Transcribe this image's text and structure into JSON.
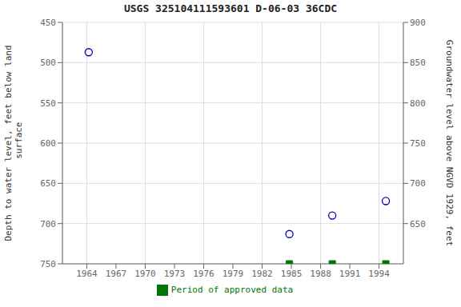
{
  "chart_data": {
    "type": "scatter",
    "title": "USGS 325104111593601 D-06-03 36CDC",
    "ylabel": "Depth to water level, feet below land\n surface",
    "y2label": "Groundwater level above NGVD 1929, feet",
    "series": [
      {
        "color": "#0000bb",
        "marker": "circle",
        "x": [
          1964.2,
          1984.8,
          1989.2,
          1994.7
        ],
        "values": [
          487,
          713,
          690,
          672
        ]
      },
      {
        "name": "Period of approved data",
        "color": "#007700",
        "marker": "square",
        "x": [
          1984.8,
          1989.2,
          1994.7
        ],
        "values": [
          750,
          750,
          750
        ]
      }
    ],
    "xlim": [
      1961.5,
      1996.5
    ],
    "xticks": [
      1964,
      1967,
      1970,
      1973,
      1976,
      1979,
      1982,
      1985,
      1988,
      1991,
      1994
    ],
    "ylim": [
      750,
      450
    ],
    "yticks": [
      450,
      500,
      550,
      600,
      650,
      700,
      750
    ],
    "y2lim": [
      600,
      900
    ],
    "y2ticks": [
      900,
      850,
      800,
      750,
      700,
      650
    ],
    "grid": true,
    "legend": "bottom"
  }
}
